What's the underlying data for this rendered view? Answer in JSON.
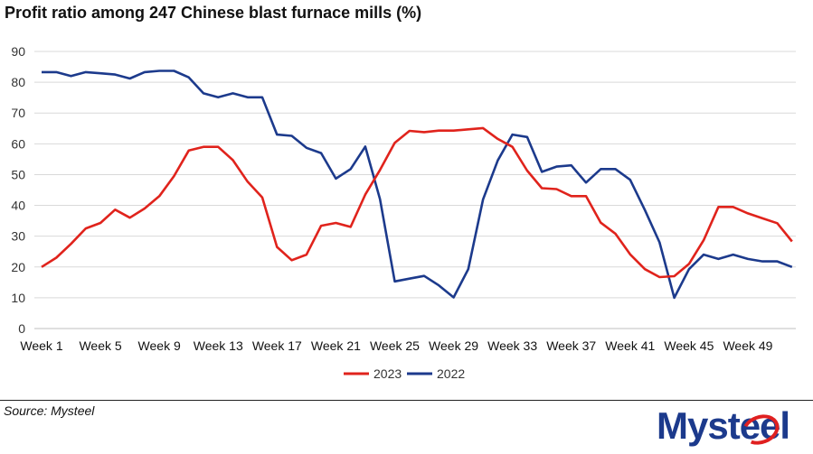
{
  "source": "Source: Mysteel",
  "logo_text": "Mysteel",
  "colors": {
    "s2023": "#e0231c",
    "s2022": "#1c3a8c",
    "grid": "#d9d9d9"
  },
  "chart_data": {
    "type": "line",
    "title": "Profit ratio among 247 Chinese blast furnace mills (%)",
    "xlabel": "",
    "ylabel": "",
    "ylim": [
      0,
      90
    ],
    "yticks": [
      "0",
      "10",
      "20",
      "30",
      "40",
      "50",
      "60",
      "70",
      "80",
      "90"
    ],
    "xtick_labels": [
      "Week 1",
      "Week 5",
      "Week 9",
      "Week 13",
      "Week 17",
      "Week 21",
      "Week 25",
      "Week 29",
      "Week 33",
      "Week 37",
      "Week 41",
      "Week 45",
      "Week 49"
    ],
    "x": [
      1,
      2,
      3,
      4,
      5,
      6,
      7,
      8,
      9,
      10,
      11,
      12,
      13,
      14,
      15,
      16,
      17,
      18,
      19,
      20,
      21,
      22,
      23,
      24,
      25,
      26,
      27,
      28,
      29,
      30,
      31,
      32,
      33,
      34,
      35,
      36,
      37,
      38,
      39,
      40,
      41,
      42,
      43,
      44,
      45,
      46,
      47,
      48,
      49,
      50,
      51,
      52
    ],
    "grid": true,
    "legend": "bottom-center",
    "series": [
      {
        "name": "2023",
        "values": [
          20,
          23,
          27.5,
          32.5,
          34.3,
          38.6,
          36,
          39,
          43,
          49.5,
          57.8,
          59,
          59,
          54.7,
          47.7,
          42.6,
          26.5,
          22.2,
          24,
          33.4,
          34.3,
          33,
          43.5,
          51.5,
          60.3,
          64.2,
          63.8,
          64.3,
          64.3,
          64.7,
          65.1,
          61.6,
          59,
          51.3,
          45.6,
          45.3,
          43,
          43,
          34.4,
          30.8,
          24.1,
          19.3,
          16.7,
          17,
          21,
          28.7,
          39.5,
          39.5,
          37.4,
          35.8,
          34.2,
          28.3
        ]
      },
      {
        "name": "2022",
        "values": [
          83.3,
          83.3,
          82,
          83.3,
          82.9,
          82.5,
          81.2,
          83.3,
          83.7,
          83.7,
          81.6,
          76.4,
          75.1,
          76.4,
          75.1,
          75.1,
          63,
          62.6,
          58.7,
          57,
          48.7,
          51.8,
          59.1,
          42,
          15.3,
          16.2,
          17.1,
          14,
          10.1,
          19.3,
          41.9,
          54.6,
          63,
          62.2,
          50.9,
          52.6,
          53,
          47.4,
          51.8,
          51.8,
          48.3,
          38.5,
          28,
          10,
          19.3,
          24,
          22.6,
          24,
          22.6,
          21.8,
          21.8,
          20
        ]
      }
    ]
  }
}
